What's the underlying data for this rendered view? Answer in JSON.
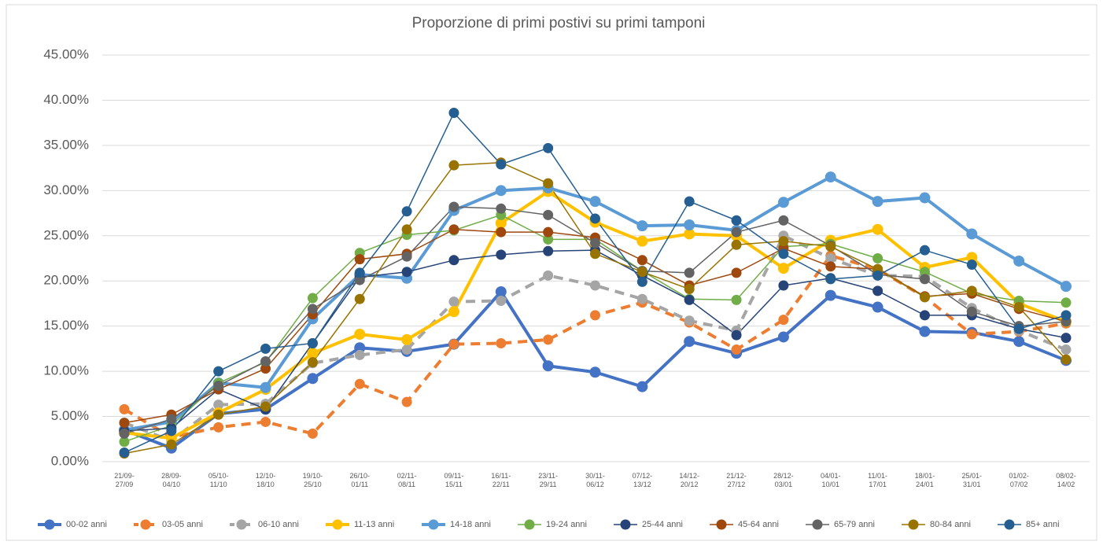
{
  "chart_data": {
    "type": "line",
    "title": "Proporzione di primi postivi su primi tamponi",
    "categories": [
      "21/09-27/09",
      "28/09-04/10",
      "05/10-11/10",
      "12/10-18/10",
      "19/10-25/10",
      "26/10-01/11",
      "02/11-08/11",
      "09/11-15/11",
      "16/11-22/11",
      "23/11-29/11",
      "30/11-06/12",
      "07/12-13/12",
      "14/12-20/12",
      "21/12-27/12",
      "28/12-03/01",
      "04/01-10/01",
      "11/01-17/01",
      "18/01-24/01",
      "25/01-31/01",
      "01/02-07/02",
      "08/02-14/02"
    ],
    "ylim": [
      0,
      45
    ],
    "yticks": [
      {
        "value": 0,
        "label": "0.00%"
      },
      {
        "value": 5,
        "label": "5.00%"
      },
      {
        "value": 10,
        "label": "10.00%"
      },
      {
        "value": 15,
        "label": "15.00%"
      },
      {
        "value": 20,
        "label": "20.00%"
      },
      {
        "value": 25,
        "label": "25.00%"
      },
      {
        "value": 30,
        "label": "30.00%"
      },
      {
        "value": 35,
        "label": "35.00%"
      },
      {
        "value": 40,
        "label": "40.00%"
      },
      {
        "value": 45,
        "label": "45.00%"
      }
    ],
    "grid": true,
    "legend": "bottom",
    "series": [
      {
        "name": "00-02 anni",
        "color": "#4472c4",
        "line_style": "bold",
        "values": [
          3.5,
          1.5,
          5.3,
          5.8,
          9.2,
          12.6,
          12.2,
          13.0,
          18.8,
          10.6,
          9.9,
          8.3,
          13.3,
          12.0,
          13.8,
          18.4,
          17.1,
          14.4,
          14.3,
          13.3,
          11.2
        ]
      },
      {
        "name": "03-05 anni",
        "color": "#ed7d31",
        "line_style": "dashed",
        "values": [
          5.8,
          2.7,
          3.8,
          4.4,
          3.1,
          8.6,
          6.6,
          13.0,
          13.1,
          13.5,
          16.2,
          17.6,
          15.4,
          12.4,
          15.7,
          22.8,
          21.3,
          18.2,
          14.1,
          14.4,
          15.3
        ]
      },
      {
        "name": "06-10 anni",
        "color": "#a5a5a5",
        "line_style": "dashed",
        "values": [
          4.3,
          2.3,
          6.3,
          6.4,
          10.9,
          11.8,
          12.4,
          17.7,
          17.8,
          20.6,
          19.5,
          18.0,
          15.6,
          14.5,
          25.0,
          22.5,
          20.6,
          20.5,
          17.0,
          14.5,
          12.4
        ]
      },
      {
        "name": "11-13 anni",
        "color": "#ffc000",
        "line_style": "bold",
        "values": [
          3.2,
          2.6,
          5.4,
          8.0,
          12.0,
          14.1,
          13.5,
          16.6,
          26.4,
          29.9,
          26.5,
          24.4,
          25.2,
          25.0,
          21.4,
          24.5,
          25.7,
          21.5,
          22.6,
          17.5,
          15.5
        ]
      },
      {
        "name": "14-18 anni",
        "color": "#5b9bd5",
        "line_style": "bold",
        "values": [
          3.5,
          4.4,
          8.7,
          8.2,
          15.8,
          20.7,
          20.3,
          27.8,
          30.0,
          30.3,
          28.8,
          26.1,
          26.2,
          25.6,
          28.7,
          31.5,
          28.8,
          29.2,
          25.2,
          22.2,
          19.4
        ]
      },
      {
        "name": "19-24 anni",
        "color": "#70ad47",
        "line_style": "thin",
        "values": [
          2.2,
          4.0,
          8.7,
          11.0,
          18.1,
          23.1,
          25.1,
          25.6,
          27.3,
          24.6,
          24.6,
          21.1,
          18.0,
          17.9,
          23.8,
          24.1,
          22.5,
          21.0,
          18.6,
          17.8,
          17.6
        ]
      },
      {
        "name": "25-44 anni",
        "color": "#264478",
        "line_style": "thin",
        "values": [
          3.4,
          3.7,
          8.0,
          5.8,
          13.1,
          20.4,
          21.0,
          22.3,
          22.9,
          23.3,
          23.4,
          20.6,
          17.9,
          14.0,
          19.5,
          20.3,
          18.9,
          16.2,
          16.2,
          14.7,
          13.7
        ]
      },
      {
        "name": "45-64 anni",
        "color": "#9e480e",
        "line_style": "thin",
        "values": [
          4.3,
          5.2,
          8.0,
          10.3,
          16.3,
          22.4,
          23.0,
          25.7,
          25.4,
          25.4,
          24.8,
          22.3,
          19.5,
          20.9,
          23.6,
          21.6,
          21.3,
          18.3,
          18.6,
          16.9,
          15.5
        ]
      },
      {
        "name": "65-79 anni",
        "color": "#636363",
        "line_style": "thin",
        "values": [
          3.1,
          4.7,
          8.4,
          11.1,
          16.9,
          20.1,
          22.7,
          28.2,
          28.0,
          27.3,
          24.2,
          21.1,
          20.9,
          25.4,
          26.7,
          23.9,
          20.7,
          20.2,
          16.6,
          15.0,
          15.5
        ]
      },
      {
        "name": "80-84 anni",
        "color": "#997300",
        "line_style": "thin",
        "values": [
          0.9,
          1.9,
          5.2,
          6.1,
          11.0,
          18.0,
          25.7,
          32.8,
          33.1,
          30.8,
          23.0,
          21.0,
          19.1,
          24.0,
          24.4,
          23.8,
          21.3,
          18.2,
          18.9,
          17.1,
          11.3
        ]
      },
      {
        "name": "85+ anni",
        "color": "#255e91",
        "line_style": "thin",
        "values": [
          1.0,
          3.4,
          10.0,
          12.5,
          13.1,
          20.9,
          27.7,
          38.6,
          32.9,
          34.7,
          26.9,
          19.9,
          28.8,
          26.7,
          23.0,
          20.2,
          20.6,
          23.4,
          21.8,
          14.7,
          16.2
        ]
      }
    ]
  }
}
